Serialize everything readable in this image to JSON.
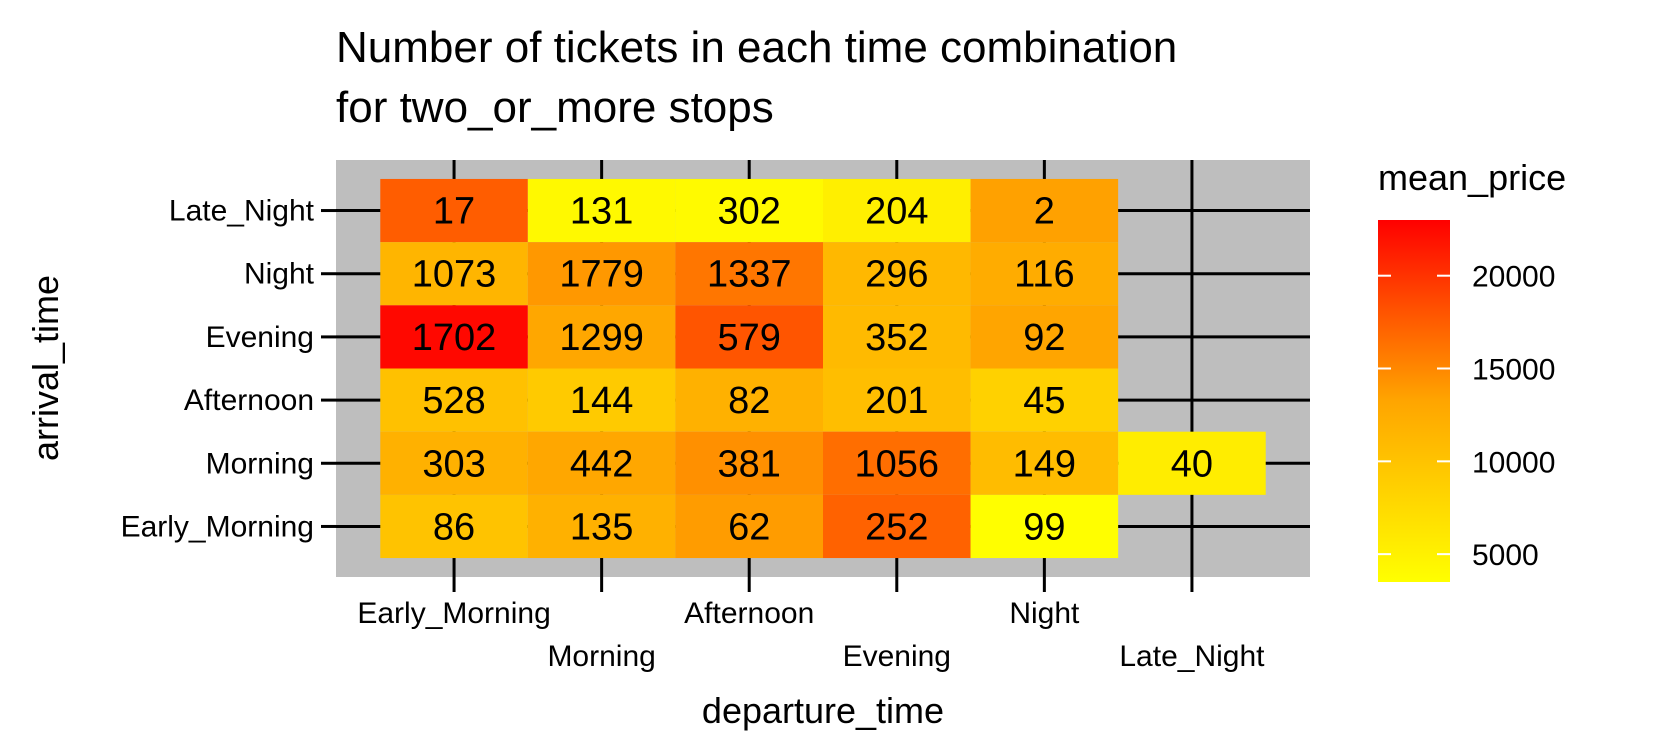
{
  "chart_data": {
    "type": "heatmap",
    "title": "Number of tickets in each time combination",
    "subtitle": "for two_or_more stops",
    "xlabel": "departure_time",
    "ylabel": "arrival_time",
    "x_categories": [
      "Early_Morning",
      "Morning",
      "Afternoon",
      "Evening",
      "Night",
      "Late_Night"
    ],
    "y_categories": [
      "Early_Morning",
      "Morning",
      "Afternoon",
      "Evening",
      "Night",
      "Late_Night"
    ],
    "fill_variable": "mean_price",
    "label_variable": "count",
    "cells": [
      {
        "x": "Early_Morning",
        "y": "Late_Night",
        "count": 17,
        "mean_price": 17500
      },
      {
        "x": "Morning",
        "y": "Late_Night",
        "count": 131,
        "mean_price": 4200
      },
      {
        "x": "Afternoon",
        "y": "Late_Night",
        "count": 302,
        "mean_price": 4000
      },
      {
        "x": "Evening",
        "y": "Late_Night",
        "count": 204,
        "mean_price": 5200
      },
      {
        "x": "Night",
        "y": "Late_Night",
        "count": 2,
        "mean_price": 13500
      },
      {
        "x": "Early_Morning",
        "y": "Night",
        "count": 1073,
        "mean_price": 11500
      },
      {
        "x": "Morning",
        "y": "Night",
        "count": 1779,
        "mean_price": 14000
      },
      {
        "x": "Afternoon",
        "y": "Night",
        "count": 1337,
        "mean_price": 16000
      },
      {
        "x": "Evening",
        "y": "Night",
        "count": 296,
        "mean_price": 11200
      },
      {
        "x": "Night",
        "y": "Night",
        "count": 116,
        "mean_price": 12500
      },
      {
        "x": "Early_Morning",
        "y": "Evening",
        "count": 1702,
        "mean_price": 22500
      },
      {
        "x": "Morning",
        "y": "Evening",
        "count": 1299,
        "mean_price": 13000
      },
      {
        "x": "Afternoon",
        "y": "Evening",
        "count": 579,
        "mean_price": 18000
      },
      {
        "x": "Evening",
        "y": "Evening",
        "count": 352,
        "mean_price": 11000
      },
      {
        "x": "Night",
        "y": "Evening",
        "count": 92,
        "mean_price": 13200
      },
      {
        "x": "Early_Morning",
        "y": "Afternoon",
        "count": 528,
        "mean_price": 10200
      },
      {
        "x": "Morning",
        "y": "Afternoon",
        "count": 144,
        "mean_price": 9200
      },
      {
        "x": "Afternoon",
        "y": "Afternoon",
        "count": 82,
        "mean_price": 12000
      },
      {
        "x": "Evening",
        "y": "Afternoon",
        "count": 201,
        "mean_price": 10500
      },
      {
        "x": "Night",
        "y": "Afternoon",
        "count": 45,
        "mean_price": 8500
      },
      {
        "x": "Early_Morning",
        "y": "Morning",
        "count": 303,
        "mean_price": 12000
      },
      {
        "x": "Morning",
        "y": "Morning",
        "count": 442,
        "mean_price": 13000
      },
      {
        "x": "Afternoon",
        "y": "Morning",
        "count": 381,
        "mean_price": 14500
      },
      {
        "x": "Evening",
        "y": "Morning",
        "count": 1056,
        "mean_price": 16500
      },
      {
        "x": "Night",
        "y": "Morning",
        "count": 149,
        "mean_price": 10800
      },
      {
        "x": "Late_Night",
        "y": "Morning",
        "count": 40,
        "mean_price": 5500
      },
      {
        "x": "Early_Morning",
        "y": "Early_Morning",
        "count": 86,
        "mean_price": 10000
      },
      {
        "x": "Morning",
        "y": "Early_Morning",
        "count": 135,
        "mean_price": 12000
      },
      {
        "x": "Afternoon",
        "y": "Early_Morning",
        "count": 62,
        "mean_price": 13800
      },
      {
        "x": "Evening",
        "y": "Early_Morning",
        "count": 252,
        "mean_price": 17200
      },
      {
        "x": "Night",
        "y": "Early_Morning",
        "count": 99,
        "mean_price": 3600
      }
    ],
    "legend": {
      "title": "mean_price",
      "ticks": [
        5000,
        10000,
        15000,
        20000
      ],
      "range": [
        3500,
        23000
      ],
      "colors": {
        "low": "#FFFF00",
        "mid": "#FFA500",
        "high": "#FF0000"
      },
      "placement": "right"
    },
    "panel_background": "#BEBEBE",
    "grid_color": "#000000",
    "grid": true
  }
}
